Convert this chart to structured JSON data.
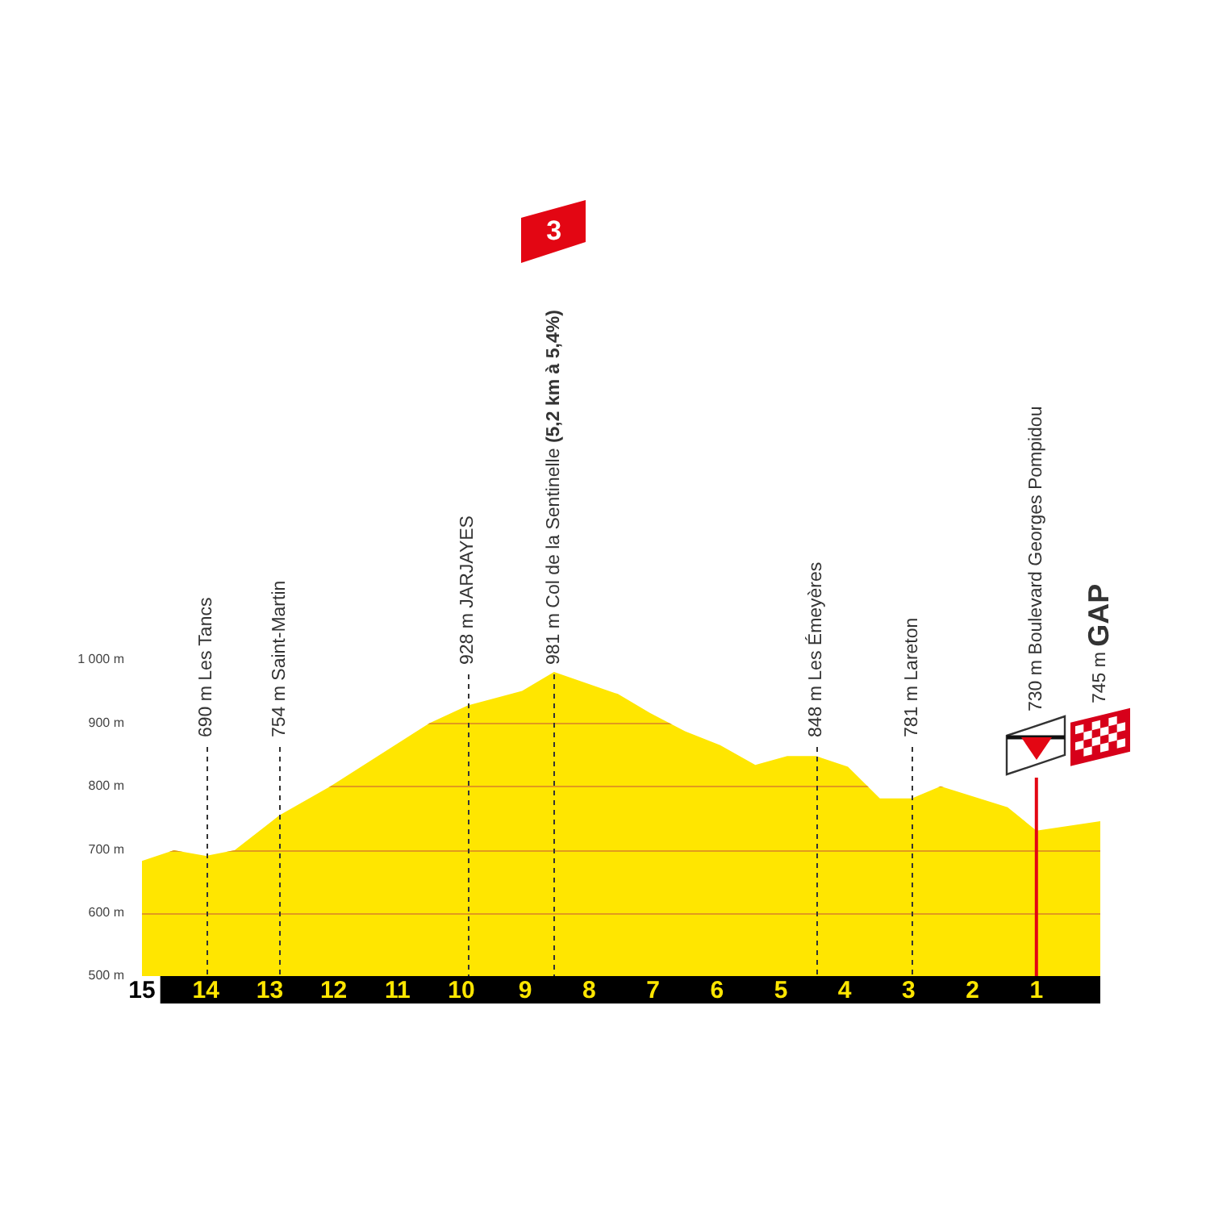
{
  "chart_data": {
    "type": "area",
    "x": [
      15,
      14.5,
      14,
      13.55,
      12.85,
      12.05,
      10.5,
      9.9,
      9.05,
      8.55,
      7.55,
      7.05,
      6.5,
      5.95,
      5.4,
      4.9,
      4.45,
      3.95,
      3.45,
      2.95,
      2.5,
      1.45,
      1,
      0
    ],
    "values": [
      682,
      699,
      690,
      699,
      754,
      800,
      900,
      928,
      951,
      981,
      946,
      916,
      887,
      865,
      834,
      848,
      848,
      831,
      781,
      781,
      800,
      767,
      730,
      745
    ],
    "color": "#ffe600",
    "xlim": [
      15,
      0
    ],
    "xticks": [
      15,
      14,
      13,
      12,
      11,
      10,
      9,
      8,
      7,
      6,
      5,
      4,
      3,
      2,
      1
    ],
    "ylim": [
      500,
      1000
    ],
    "yticks": [
      {
        "value": 500,
        "label": "500 m"
      },
      {
        "value": 600,
        "label": "600 m"
      },
      {
        "value": 700,
        "label": "700 m"
      },
      {
        "value": 800,
        "label": "800 m"
      },
      {
        "value": 900,
        "label": "900 m"
      },
      {
        "value": 1000,
        "label": "1 000 m"
      }
    ],
    "grid": "y",
    "annotations": [
      "3",
      "730 m Boulevard Georges Pompidou",
      "745 m GAP"
    ],
    "ref_lines": [
      {
        "axis": "x",
        "value": 14,
        "label": "690 m Les Tancs",
        "color": "#333333",
        "line_style": "dashed"
      },
      {
        "axis": "x",
        "value": 12.85,
        "label": "754 m Saint-Martin",
        "color": "#333333",
        "line_style": "dashed"
      },
      {
        "axis": "x",
        "value": 9.9,
        "label": "928 m JARJAYES",
        "color": "#333333",
        "line_style": "dashed"
      },
      {
        "axis": "x",
        "value": 8.55,
        "label": "981 m Col de la Sentinelle (5,2 km à 5,4%)",
        "color": "#333333",
        "line_style": "dashed"
      },
      {
        "axis": "x",
        "value": 4.45,
        "label": "848 m Les Émeyères",
        "color": "#333333",
        "line_style": "dashed"
      },
      {
        "axis": "x",
        "value": 2.95,
        "label": "781 m Lareton",
        "color": "#333333",
        "line_style": "dashed"
      },
      {
        "axis": "x",
        "value": 1,
        "color": "#e30613",
        "line_style": "solid"
      }
    ]
  }
}
